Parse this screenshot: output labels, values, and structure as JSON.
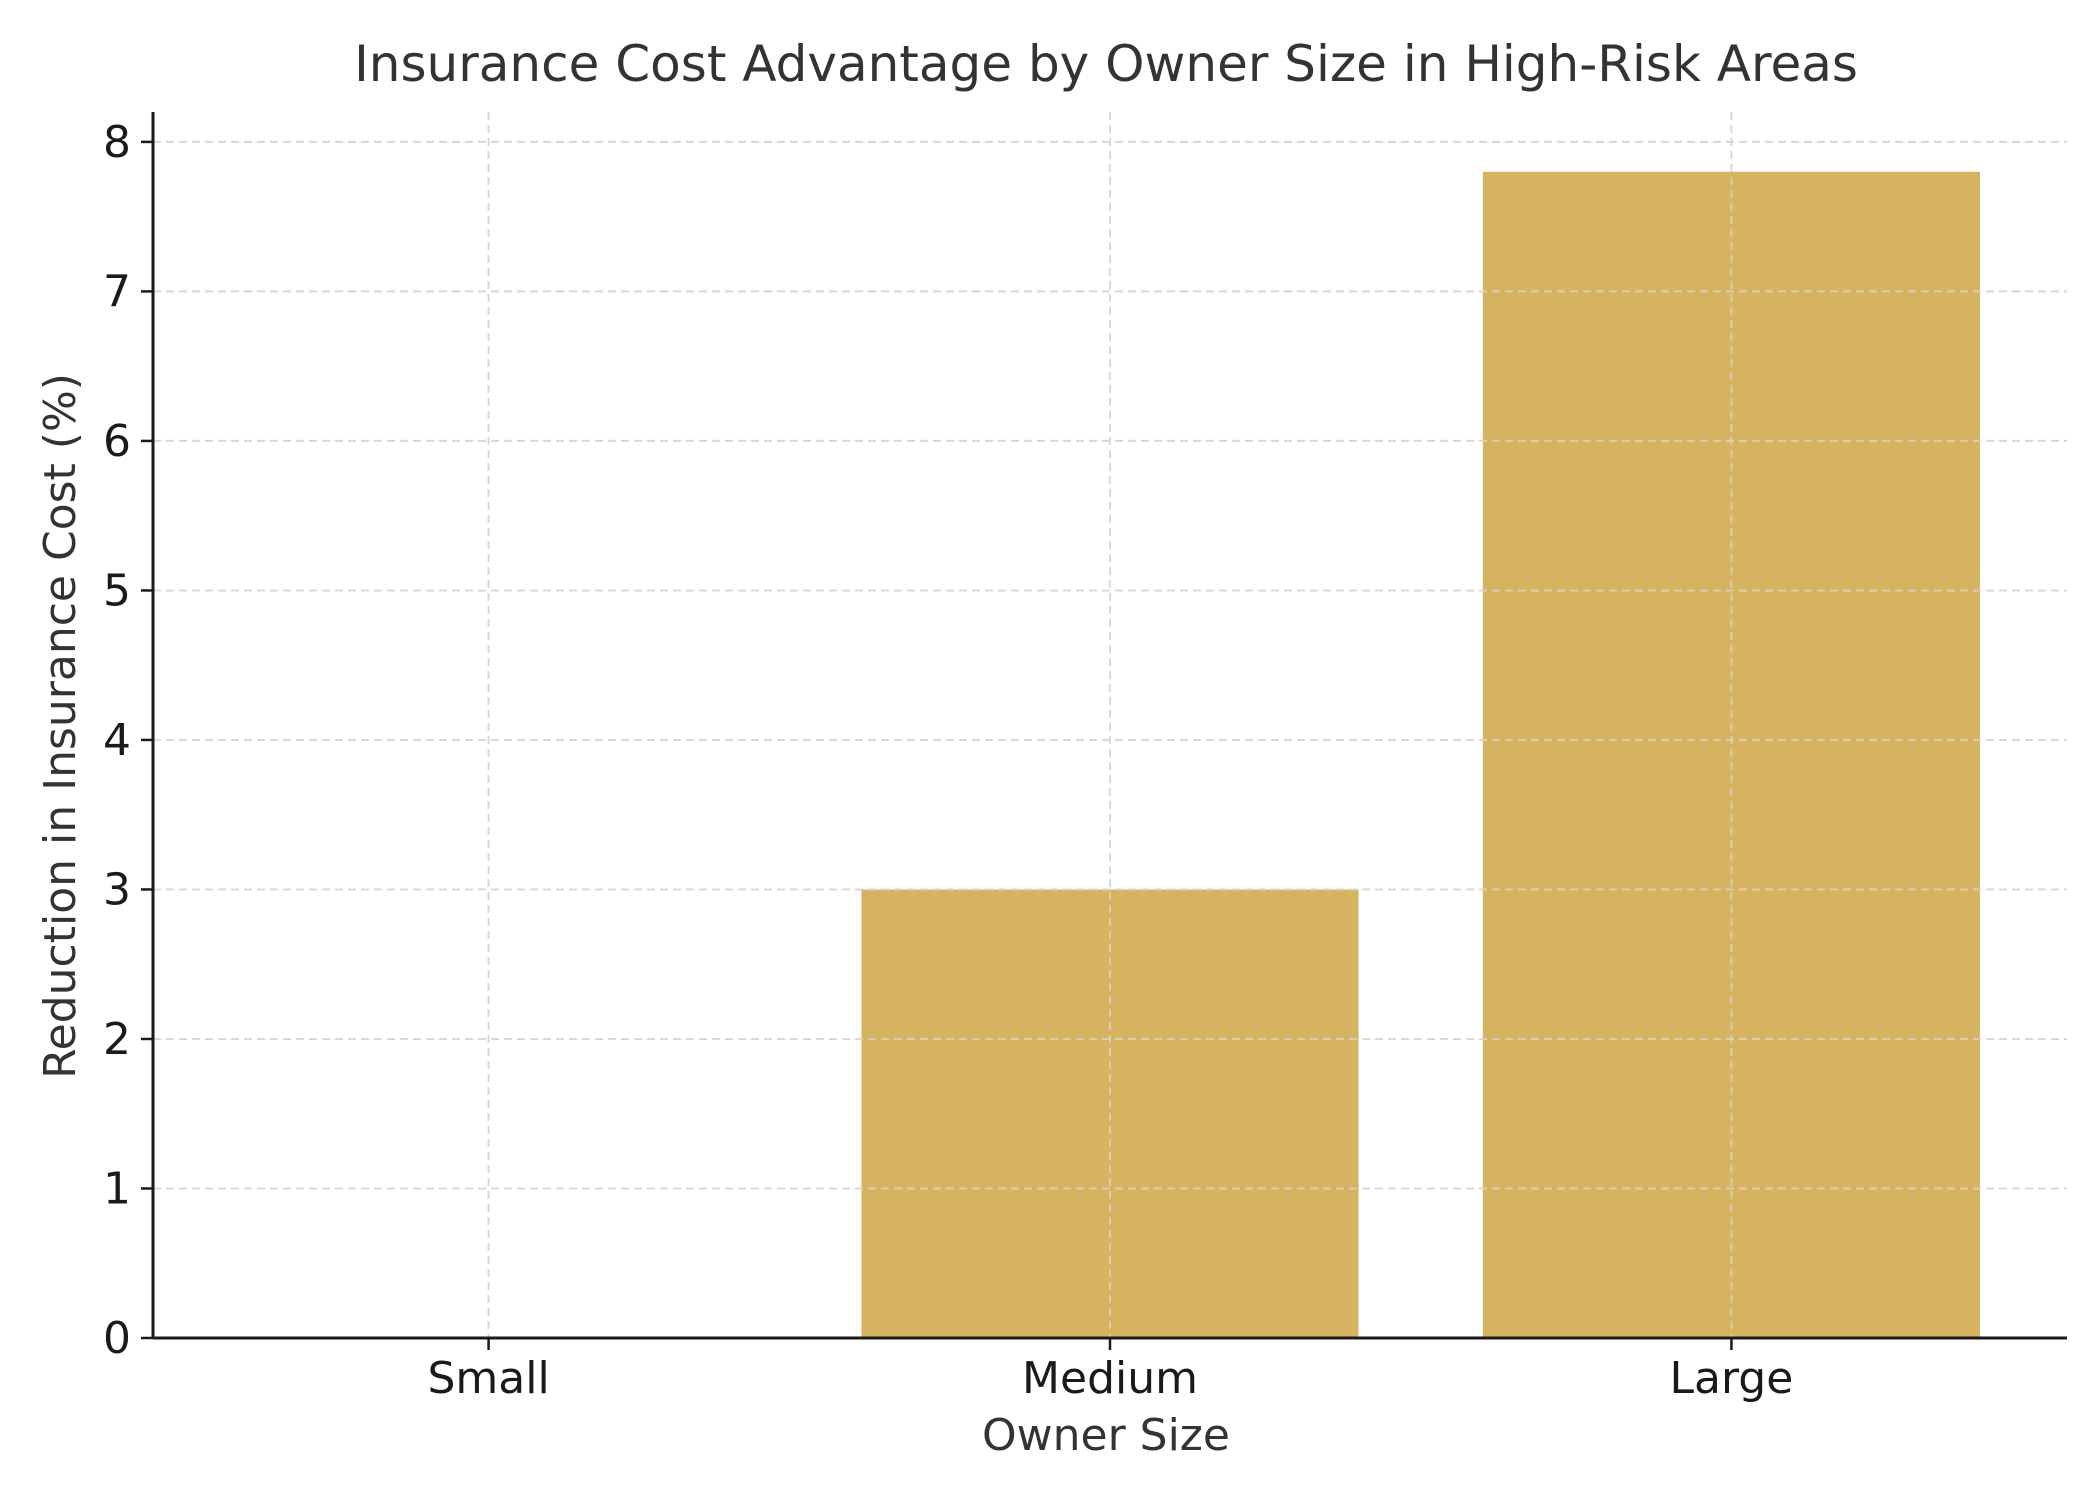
{
  "chart_data": {
    "type": "bar",
    "title": "Insurance Cost Advantage by Owner Size in High-Risk Areas",
    "xlabel": "Owner Size",
    "ylabel": "Reduction in Insurance Cost (%)",
    "categories": [
      "Small",
      "Medium",
      "Large"
    ],
    "values": [
      0,
      3.0,
      7.8
    ],
    "ylim": [
      0,
      8.2
    ],
    "yticks": [
      0,
      1,
      2,
      3,
      4,
      5,
      6,
      7,
      8
    ],
    "grid": true,
    "bar_color": "#d6b360",
    "grid_color": "#d9d9d9",
    "axis_color": "#1a1a1a",
    "title_color": "#333333",
    "label_color": "#333333"
  }
}
